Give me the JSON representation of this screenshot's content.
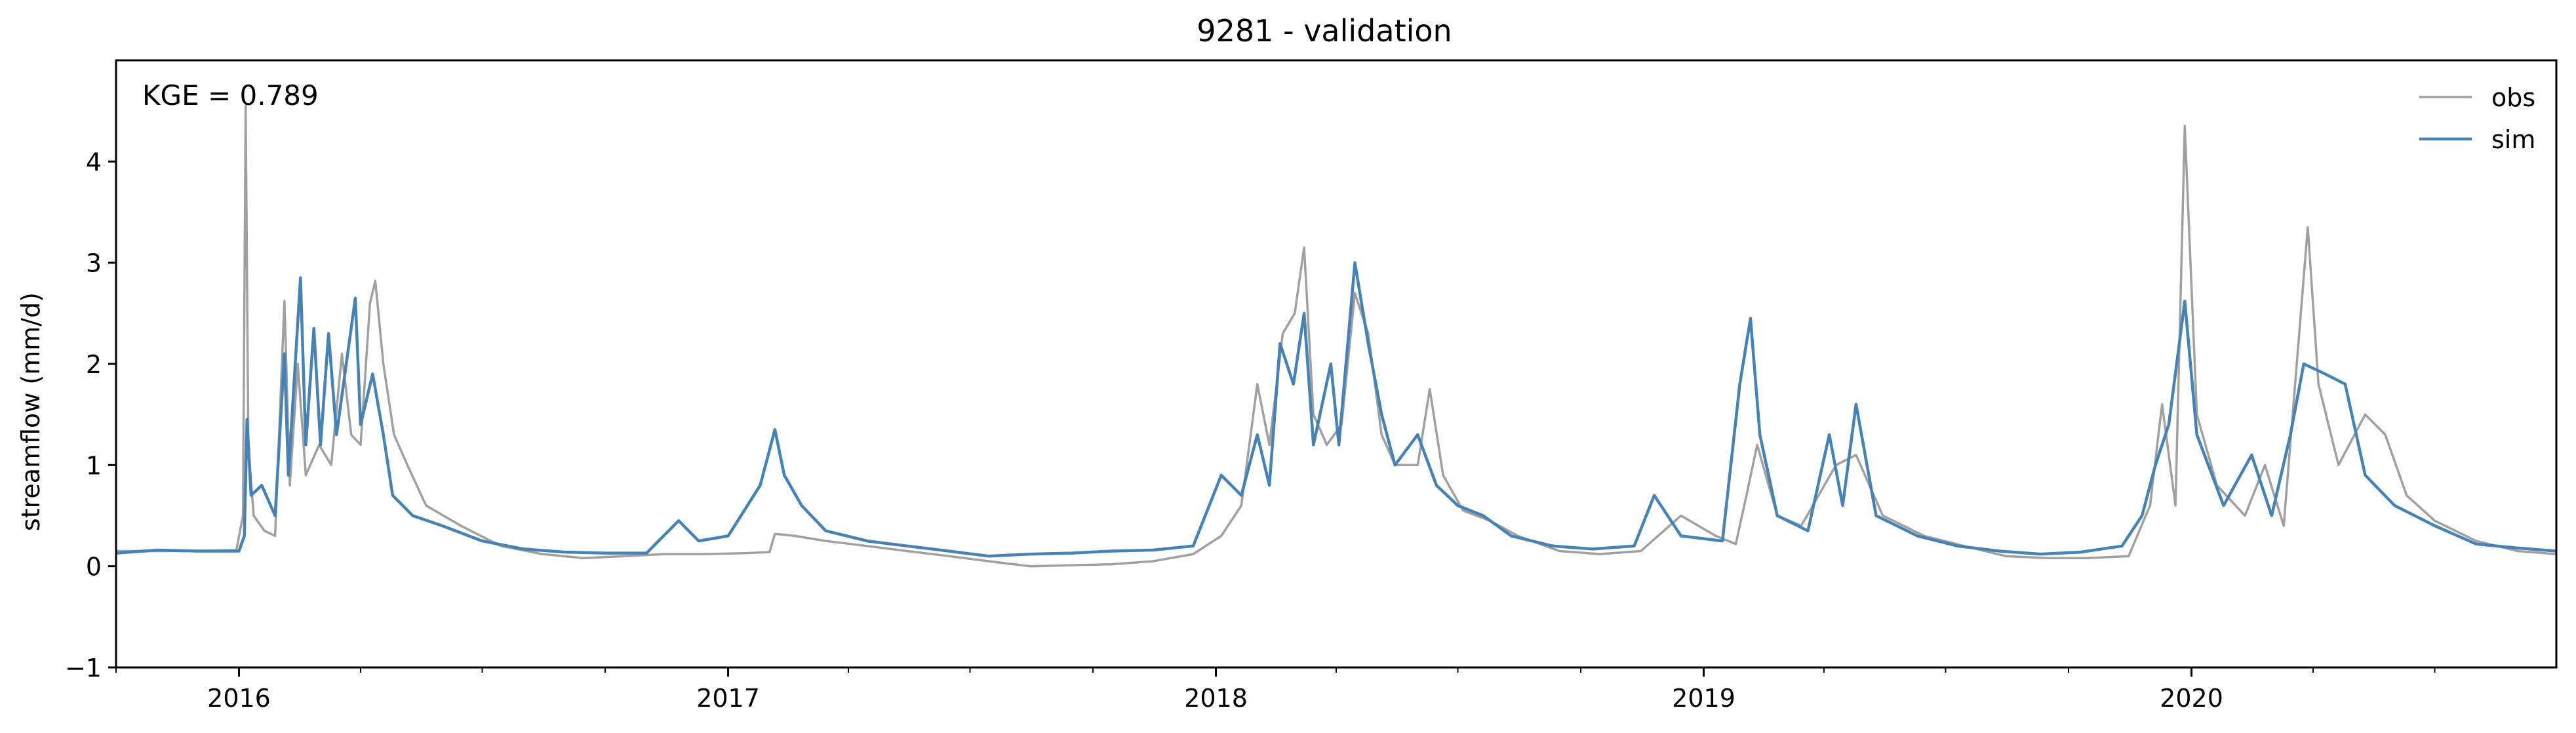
{
  "chart_data": {
    "type": "line",
    "title": "9281 - validation",
    "xlabel": "",
    "ylabel": "streamflow (mm/d)",
    "xlim": [
      "2015-10-01",
      "2020-09-30"
    ],
    "ylim": [
      -1,
      5
    ],
    "yticks": [
      -1,
      0,
      1,
      2,
      3,
      4
    ],
    "xticks": [
      "2016-01-01",
      "2017-01-01",
      "2018-01-01",
      "2019-01-01",
      "2020-01-01"
    ],
    "xtick_labels": [
      "2016",
      "2017",
      "2018",
      "2019",
      "2020"
    ],
    "annotation": "KGE = 0.789",
    "legend_position": "top-right",
    "grid": false,
    "series": [
      {
        "name": "obs",
        "color": "#a0a0a0",
        "points": [
          [
            "2015-10-01",
            0.15
          ],
          [
            "2015-11-01",
            0.15
          ],
          [
            "2015-12-01",
            0.15
          ],
          [
            "2015-12-30",
            0.16
          ],
          [
            "2016-01-04",
            0.5
          ],
          [
            "2016-01-06",
            4.55
          ],
          [
            "2016-01-08",
            1.2
          ],
          [
            "2016-01-12",
            0.5
          ],
          [
            "2016-01-20",
            0.35
          ],
          [
            "2016-01-28",
            0.3
          ],
          [
            "2016-02-04",
            2.62
          ],
          [
            "2016-02-08",
            0.8
          ],
          [
            "2016-02-14",
            2.0
          ],
          [
            "2016-02-20",
            0.9
          ],
          [
            "2016-03-01",
            1.2
          ],
          [
            "2016-03-10",
            1.0
          ],
          [
            "2016-03-18",
            2.1
          ],
          [
            "2016-03-25",
            1.3
          ],
          [
            "2016-04-01",
            1.2
          ],
          [
            "2016-04-08",
            2.6
          ],
          [
            "2016-04-12",
            2.82
          ],
          [
            "2016-04-18",
            2.0
          ],
          [
            "2016-04-26",
            1.3
          ],
          [
            "2016-05-06",
            1.0
          ],
          [
            "2016-05-20",
            0.6
          ],
          [
            "2016-06-15",
            0.4
          ],
          [
            "2016-07-15",
            0.2
          ],
          [
            "2016-08-15",
            0.12
          ],
          [
            "2016-09-15",
            0.08
          ],
          [
            "2016-10-15",
            0.1
          ],
          [
            "2016-11-15",
            0.12
          ],
          [
            "2016-12-15",
            0.12
          ],
          [
            "2017-01-15",
            0.13
          ],
          [
            "2017-02-01",
            0.14
          ],
          [
            "2017-02-05",
            0.32
          ],
          [
            "2017-02-20",
            0.3
          ],
          [
            "2017-03-15",
            0.25
          ],
          [
            "2017-04-15",
            0.2
          ],
          [
            "2017-05-15",
            0.15
          ],
          [
            "2017-06-15",
            0.1
          ],
          [
            "2017-07-15",
            0.05
          ],
          [
            "2017-08-15",
            0.0
          ],
          [
            "2017-09-15",
            0.01
          ],
          [
            "2017-10-15",
            0.02
          ],
          [
            "2017-11-15",
            0.05
          ],
          [
            "2017-12-15",
            0.12
          ],
          [
            "2018-01-05",
            0.3
          ],
          [
            "2018-01-20",
            0.6
          ],
          [
            "2018-02-01",
            1.8
          ],
          [
            "2018-02-10",
            1.2
          ],
          [
            "2018-02-20",
            2.3
          ],
          [
            "2018-03-01",
            2.5
          ],
          [
            "2018-03-08",
            3.15
          ],
          [
            "2018-03-15",
            1.5
          ],
          [
            "2018-03-25",
            1.2
          ],
          [
            "2018-04-05",
            1.4
          ],
          [
            "2018-04-15",
            2.7
          ],
          [
            "2018-04-25",
            2.3
          ],
          [
            "2018-05-05",
            1.3
          ],
          [
            "2018-05-15",
            1.0
          ],
          [
            "2018-06-01",
            1.0
          ],
          [
            "2018-06-10",
            1.75
          ],
          [
            "2018-06-20",
            0.9
          ],
          [
            "2018-07-05",
            0.55
          ],
          [
            "2018-07-25",
            0.45
          ],
          [
            "2018-08-15",
            0.3
          ],
          [
            "2018-09-15",
            0.15
          ],
          [
            "2018-10-15",
            0.12
          ],
          [
            "2018-11-15",
            0.15
          ],
          [
            "2018-12-15",
            0.5
          ],
          [
            "2019-01-10",
            0.3
          ],
          [
            "2019-01-25",
            0.22
          ],
          [
            "2019-02-02",
            0.7
          ],
          [
            "2019-02-10",
            1.2
          ],
          [
            "2019-02-25",
            0.5
          ],
          [
            "2019-03-15",
            0.4
          ],
          [
            "2019-04-10",
            1.0
          ],
          [
            "2019-04-25",
            1.1
          ],
          [
            "2019-05-15",
            0.5
          ],
          [
            "2019-06-15",
            0.3
          ],
          [
            "2019-07-15",
            0.2
          ],
          [
            "2019-08-15",
            0.1
          ],
          [
            "2019-09-15",
            0.08
          ],
          [
            "2019-10-15",
            0.08
          ],
          [
            "2019-11-15",
            0.1
          ],
          [
            "2019-12-01",
            0.6
          ],
          [
            "2019-12-10",
            1.6
          ],
          [
            "2019-12-20",
            0.6
          ],
          [
            "2019-12-27",
            4.35
          ],
          [
            "2020-01-05",
            1.5
          ],
          [
            "2020-01-20",
            0.8
          ],
          [
            "2020-02-10",
            0.5
          ],
          [
            "2020-02-25",
            1.0
          ],
          [
            "2020-03-10",
            0.4
          ],
          [
            "2020-03-28",
            3.35
          ],
          [
            "2020-04-05",
            1.8
          ],
          [
            "2020-04-20",
            1.0
          ],
          [
            "2020-05-10",
            1.5
          ],
          [
            "2020-05-25",
            1.3
          ],
          [
            "2020-06-10",
            0.7
          ],
          [
            "2020-07-01",
            0.45
          ],
          [
            "2020-08-01",
            0.25
          ],
          [
            "2020-09-01",
            0.15
          ],
          [
            "2020-09-30",
            0.12
          ]
        ]
      },
      {
        "name": "sim",
        "color": "#4682b4",
        "points": [
          [
            "2015-10-01",
            0.13
          ],
          [
            "2015-11-01",
            0.16
          ],
          [
            "2015-12-01",
            0.15
          ],
          [
            "2016-01-01",
            0.15
          ],
          [
            "2016-01-05",
            0.3
          ],
          [
            "2016-01-07",
            1.45
          ],
          [
            "2016-01-10",
            0.7
          ],
          [
            "2016-01-18",
            0.8
          ],
          [
            "2016-01-28",
            0.5
          ],
          [
            "2016-02-04",
            2.1
          ],
          [
            "2016-02-07",
            0.9
          ],
          [
            "2016-02-16",
            2.85
          ],
          [
            "2016-02-20",
            1.2
          ],
          [
            "2016-02-26",
            2.35
          ],
          [
            "2016-03-02",
            1.2
          ],
          [
            "2016-03-08",
            2.3
          ],
          [
            "2016-03-14",
            1.3
          ],
          [
            "2016-03-28",
            2.65
          ],
          [
            "2016-04-01",
            1.4
          ],
          [
            "2016-04-10",
            1.9
          ],
          [
            "2016-04-18",
            1.3
          ],
          [
            "2016-04-25",
            0.7
          ],
          [
            "2016-05-10",
            0.5
          ],
          [
            "2016-06-01",
            0.4
          ],
          [
            "2016-07-01",
            0.25
          ],
          [
            "2016-08-01",
            0.17
          ],
          [
            "2016-09-01",
            0.14
          ],
          [
            "2016-10-01",
            0.13
          ],
          [
            "2016-11-01",
            0.13
          ],
          [
            "2016-11-25",
            0.45
          ],
          [
            "2016-12-10",
            0.25
          ],
          [
            "2017-01-01",
            0.3
          ],
          [
            "2017-01-25",
            0.8
          ],
          [
            "2017-02-05",
            1.35
          ],
          [
            "2017-02-12",
            0.9
          ],
          [
            "2017-02-25",
            0.6
          ],
          [
            "2017-03-15",
            0.35
          ],
          [
            "2017-04-15",
            0.25
          ],
          [
            "2017-05-15",
            0.2
          ],
          [
            "2017-06-15",
            0.15
          ],
          [
            "2017-07-15",
            0.1
          ],
          [
            "2017-08-15",
            0.12
          ],
          [
            "2017-09-15",
            0.13
          ],
          [
            "2017-10-15",
            0.15
          ],
          [
            "2017-11-15",
            0.16
          ],
          [
            "2017-12-15",
            0.2
          ],
          [
            "2018-01-05",
            0.9
          ],
          [
            "2018-01-20",
            0.7
          ],
          [
            "2018-02-01",
            1.3
          ],
          [
            "2018-02-10",
            0.8
          ],
          [
            "2018-02-18",
            2.2
          ],
          [
            "2018-02-28",
            1.8
          ],
          [
            "2018-03-08",
            2.5
          ],
          [
            "2018-03-15",
            1.2
          ],
          [
            "2018-03-28",
            2.0
          ],
          [
            "2018-04-03",
            1.2
          ],
          [
            "2018-04-15",
            3.0
          ],
          [
            "2018-04-25",
            2.2
          ],
          [
            "2018-05-05",
            1.5
          ],
          [
            "2018-05-15",
            1.0
          ],
          [
            "2018-06-01",
            1.3
          ],
          [
            "2018-06-15",
            0.8
          ],
          [
            "2018-07-01",
            0.6
          ],
          [
            "2018-07-20",
            0.5
          ],
          [
            "2018-08-10",
            0.3
          ],
          [
            "2018-09-10",
            0.2
          ],
          [
            "2018-10-10",
            0.17
          ],
          [
            "2018-11-10",
            0.2
          ],
          [
            "2018-11-25",
            0.7
          ],
          [
            "2018-12-15",
            0.3
          ],
          [
            "2019-01-15",
            0.25
          ],
          [
            "2019-01-28",
            1.8
          ],
          [
            "2019-02-05",
            2.45
          ],
          [
            "2019-02-12",
            1.3
          ],
          [
            "2019-02-25",
            0.5
          ],
          [
            "2019-03-20",
            0.35
          ],
          [
            "2019-04-05",
            1.3
          ],
          [
            "2019-04-15",
            0.6
          ],
          [
            "2019-04-25",
            1.6
          ],
          [
            "2019-05-10",
            0.5
          ],
          [
            "2019-06-10",
            0.3
          ],
          [
            "2019-07-10",
            0.2
          ],
          [
            "2019-08-10",
            0.15
          ],
          [
            "2019-09-10",
            0.12
          ],
          [
            "2019-10-10",
            0.14
          ],
          [
            "2019-11-10",
            0.2
          ],
          [
            "2019-11-25",
            0.5
          ],
          [
            "2019-12-05",
            1.0
          ],
          [
            "2019-12-15",
            1.4
          ],
          [
            "2019-12-27",
            2.62
          ],
          [
            "2020-01-05",
            1.3
          ],
          [
            "2020-01-25",
            0.6
          ],
          [
            "2020-02-15",
            1.1
          ],
          [
            "2020-03-01",
            0.5
          ],
          [
            "2020-03-15",
            1.3
          ],
          [
            "2020-03-25",
            2.0
          ],
          [
            "2020-04-10",
            1.9
          ],
          [
            "2020-04-25",
            1.8
          ],
          [
            "2020-05-10",
            0.9
          ],
          [
            "2020-06-01",
            0.6
          ],
          [
            "2020-07-01",
            0.4
          ],
          [
            "2020-08-01",
            0.22
          ],
          [
            "2020-09-01",
            0.18
          ],
          [
            "2020-09-30",
            0.15
          ]
        ]
      }
    ]
  }
}
